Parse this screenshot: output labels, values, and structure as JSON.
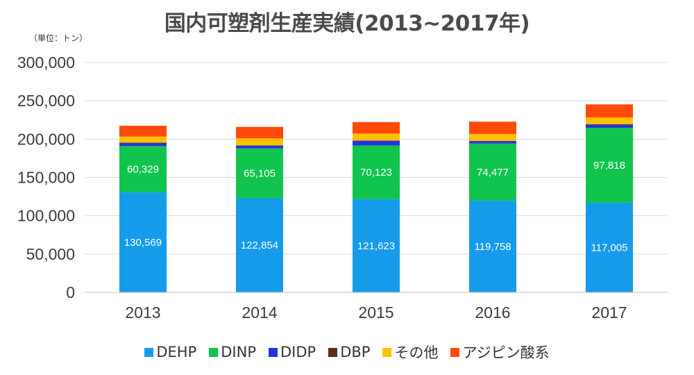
{
  "unit_label": "（単位：トン）",
  "chart_data": {
    "type": "bar",
    "stacked": true,
    "title": "国内可塑剤生産実績(2013~2017年)",
    "categories": [
      "2013",
      "2014",
      "2015",
      "2016",
      "2017"
    ],
    "ylim": [
      0,
      300000
    ],
    "yticks": [
      0,
      50000,
      100000,
      150000,
      200000,
      250000,
      300000
    ],
    "ytick_labels": [
      "0",
      "50,000",
      "100,000",
      "150,000",
      "200,000",
      "250,000",
      "300,000"
    ],
    "grid": true,
    "legend_position": "bottom",
    "series": [
      {
        "name": "DEHP",
        "color": "#169bea",
        "values": [
          130569,
          122854,
          121623,
          119758,
          117005
        ],
        "labels": [
          "130,569",
          "122,854",
          "121,623",
          "119,758",
          "117,005"
        ]
      },
      {
        "name": "DINP",
        "color": "#11c44e",
        "values": [
          60329,
          65105,
          70123,
          74477,
          97818
        ],
        "labels": [
          "60,329",
          "65,105",
          "70,123",
          "74,477",
          "97,818"
        ]
      },
      {
        "name": "DIDP",
        "color": "#2433e0",
        "values": [
          4000,
          3500,
          6000,
          3000,
          4000
        ]
      },
      {
        "name": "DBP",
        "color": "#5a2d14",
        "values": [
          500,
          500,
          500,
          500,
          500
        ]
      },
      {
        "name": "その他",
        "color": "#ffc000",
        "values": [
          8000,
          9000,
          9000,
          9000,
          9000
        ]
      },
      {
        "name": "アジピン酸系",
        "color": "#ff4a0a",
        "values": [
          14000,
          15000,
          15000,
          16000,
          17000
        ]
      }
    ]
  }
}
